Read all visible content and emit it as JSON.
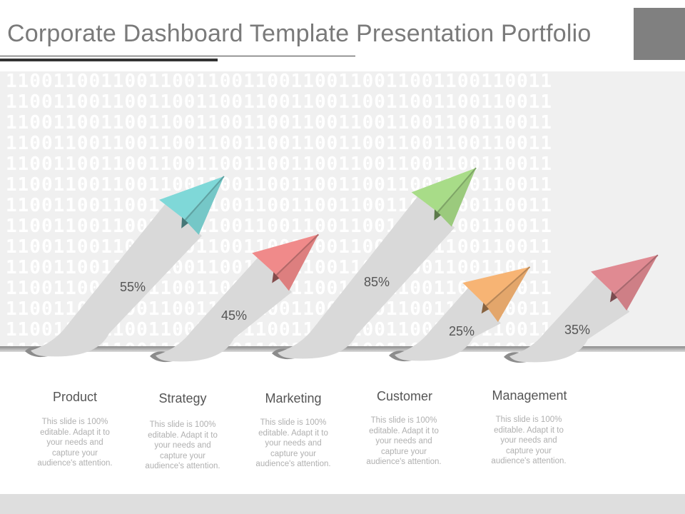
{
  "title": "Corporate Dashboard Template Presentation Portfolio",
  "background_pattern": "1100110011001100110011001100110011001100110011",
  "items": [
    {
      "label": "Product",
      "percent": "55%",
      "value": 55,
      "color": "#7fd8d8",
      "description": "This slide is 100% editable. Adapt it to your needs and capture your audience's attention."
    },
    {
      "label": "Strategy",
      "percent": "45%",
      "value": 45,
      "color": "#f08a8a",
      "description": "This slide is 100% editable. Adapt it to your needs and capture your audience's attention."
    },
    {
      "label": "Marketing",
      "percent": "85%",
      "value": 85,
      "color": "#a8dc88",
      "description": "This slide is 100% editable. Adapt it to your needs and capture your audience's attention."
    },
    {
      "label": "Customer",
      "percent": "25%",
      "value": 25,
      "color": "#f7b474",
      "description": "This slide is 100% editable. Adapt it to your needs and capture your audience's attention."
    },
    {
      "label": "Management",
      "percent": "35%",
      "value": 35,
      "color": "#e08a92",
      "description": "This slide is 100% editable. Adapt it to your needs and capture your audience's attention."
    }
  ]
}
